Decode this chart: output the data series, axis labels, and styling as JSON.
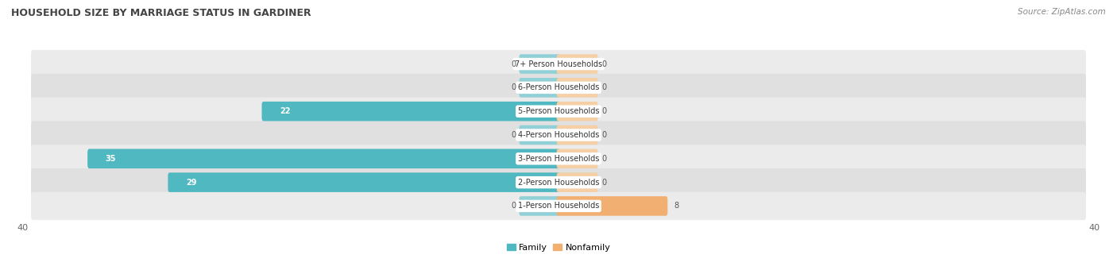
{
  "title": "Household Size by Marriage Status in Gardiner",
  "source": "Source: ZipAtlas.com",
  "categories": [
    "7+ Person Households",
    "6-Person Households",
    "5-Person Households",
    "4-Person Households",
    "3-Person Households",
    "2-Person Households",
    "1-Person Households"
  ],
  "family_values": [
    0,
    0,
    22,
    0,
    35,
    29,
    0
  ],
  "nonfamily_values": [
    0,
    0,
    0,
    0,
    0,
    0,
    8
  ],
  "family_color": "#50B8C1",
  "family_color_light": "#92D0D8",
  "nonfamily_color": "#F2AF72",
  "nonfamily_color_light": "#F5CFA5",
  "row_bg_odd": "#EBEBEB",
  "row_bg_even": "#E0E0E0",
  "xlim": 40,
  "figsize": [
    14.06,
    3.4
  ],
  "dpi": 100,
  "title_fontsize": 9,
  "source_fontsize": 7.5,
  "label_fontsize": 7,
  "value_fontsize": 7,
  "legend_fontsize": 8,
  "axis_tick_fontsize": 8,
  "bar_height": 0.55,
  "stub_val": 2.8,
  "legend_family": "Family",
  "legend_nonfamily": "Nonfamily",
  "axis_label_left": "40",
  "axis_label_right": "40"
}
